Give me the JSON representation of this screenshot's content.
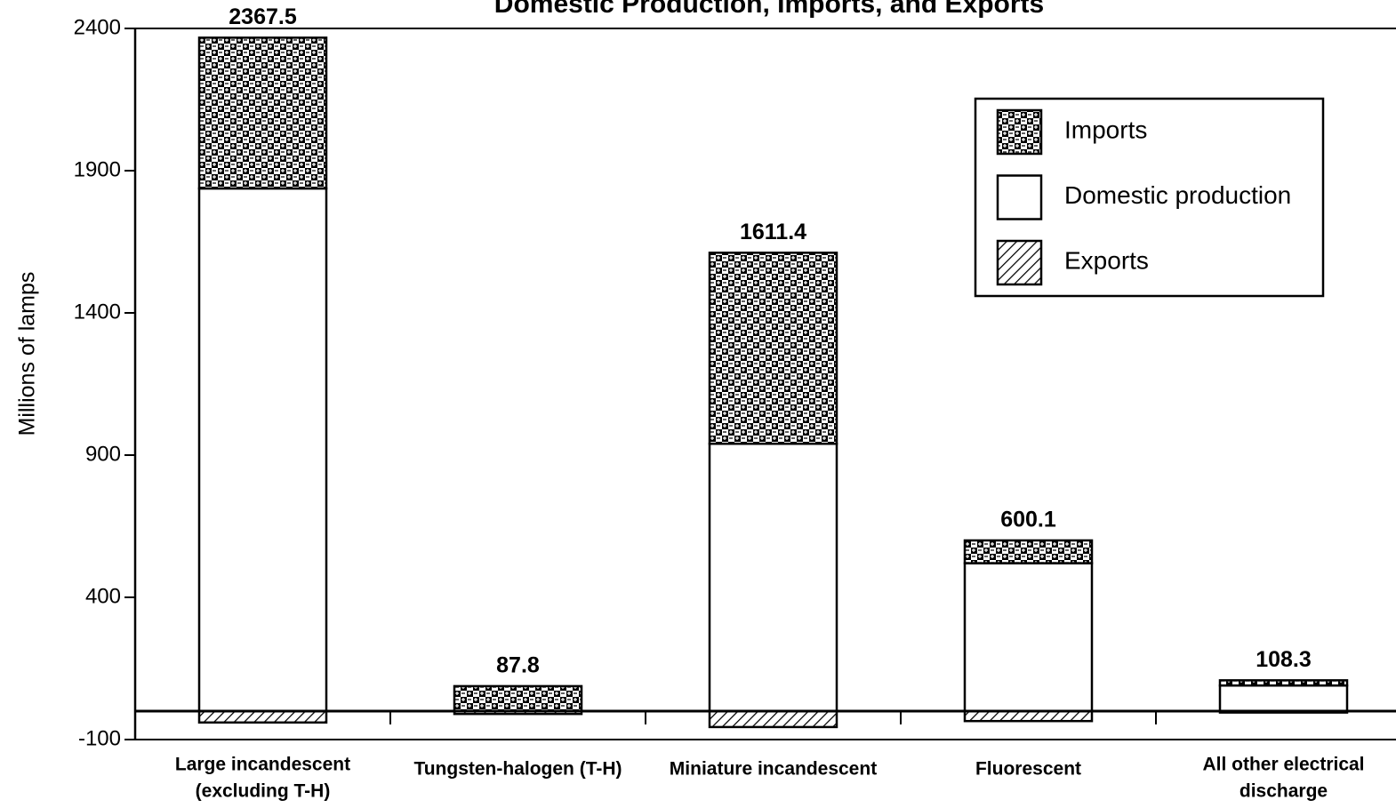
{
  "chart_data": {
    "type": "stacked_bar",
    "title": "Domestic Production, Imports, and Exports",
    "y_label": "Millions of lamps",
    "categories": [
      [
        "Large incandescent",
        "(excluding T-H)"
      ],
      [
        "Tungsten-halogen (T-H)"
      ],
      [
        "Miniature incandescent"
      ],
      [
        "Fluorescent"
      ],
      [
        "All other electrical",
        "discharge"
      ]
    ],
    "series": [
      {
        "name": "Imports",
        "color": "#000000",
        "pattern": "checker",
        "values": [
          530,
          87.8,
          671.4,
          80.1,
          18.3
        ]
      },
      {
        "name": "Domestic production",
        "color": "#000000",
        "pattern": "none",
        "values": [
          1837.5,
          0,
          940,
          520,
          90
        ]
      },
      {
        "name": "Exports",
        "color": "#000000",
        "pattern": "hatch",
        "values": [
          -40,
          -10,
          -56,
          -35,
          -5
        ]
      }
    ],
    "totals": [
      2367.5,
      87.8,
      1611.4,
      600.1,
      108.3
    ],
    "ylim": [
      -100,
      2400
    ],
    "yticks": [
      -100,
      400,
      900,
      1400,
      1900,
      2400
    ],
    "legend": "upper right"
  }
}
